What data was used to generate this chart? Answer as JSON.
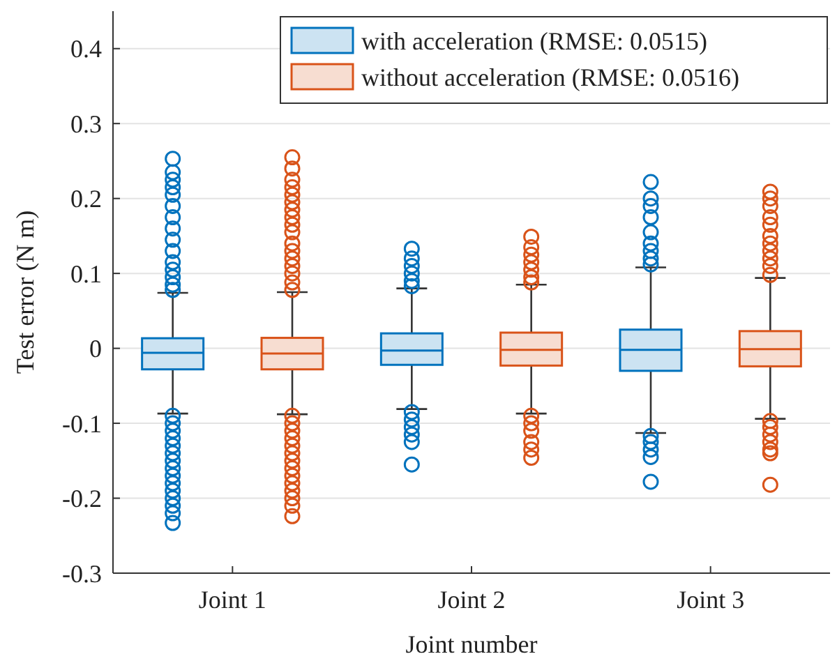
{
  "chart_data": {
    "type": "box",
    "xlabel": "Joint number",
    "ylabel": "Test error (N m)",
    "categories": [
      "Joint 1",
      "Joint 2",
      "Joint 3"
    ],
    "ylim": [
      -0.3,
      0.45
    ],
    "yticks": [
      -0.3,
      -0.2,
      -0.1,
      0,
      0.1,
      0.2,
      0.3,
      0.4
    ],
    "grid": "y",
    "legend": "top right",
    "marker": "circle",
    "series": [
      {
        "name": "with acceleration (RMSE: 0.0515)",
        "color": "#0072bd",
        "boxes": [
          {
            "low": -0.087,
            "q1": -0.028,
            "median": -0.006,
            "q3": 0.0135,
            "high": 0.074,
            "outliers": [
              0.078,
              0.085,
              0.095,
              0.105,
              0.115,
              0.13,
              0.145,
              0.16,
              0.175,
              0.19,
              0.205,
              0.215,
              0.225,
              0.235,
              0.253,
              -0.09,
              -0.1,
              -0.11,
              -0.12,
              -0.13,
              -0.14,
              -0.15,
              -0.16,
              -0.17,
              -0.18,
              -0.19,
              -0.2,
              -0.21,
              -0.22,
              -0.233
            ]
          },
          {
            "low": -0.081,
            "q1": -0.022,
            "median": -0.003,
            "q3": 0.02,
            "high": 0.08,
            "outliers": [
              0.083,
              0.09,
              0.1,
              0.11,
              0.12,
              0.133,
              -0.085,
              -0.095,
              -0.105,
              -0.115,
              -0.125,
              -0.155
            ]
          },
          {
            "low": -0.113,
            "q1": -0.03,
            "median": -0.002,
            "q3": 0.025,
            "high": 0.108,
            "outliers": [
              0.112,
              0.12,
              0.13,
              0.14,
              0.155,
              0.175,
              0.19,
              0.2,
              0.222,
              -0.117,
              -0.125,
              -0.135,
              -0.145,
              -0.178
            ]
          }
        ]
      },
      {
        "name": "without acceleration (RMSE: 0.0516)",
        "color": "#d95319",
        "boxes": [
          {
            "low": -0.088,
            "q1": -0.028,
            "median": -0.007,
            "q3": 0.014,
            "high": 0.075,
            "outliers": [
              0.078,
              0.088,
              0.1,
              0.11,
              0.12,
              0.13,
              0.14,
              0.155,
              0.165,
              0.175,
              0.185,
              0.195,
              0.205,
              0.215,
              0.225,
              0.24,
              0.255,
              -0.09,
              -0.1,
              -0.11,
              -0.12,
              -0.13,
              -0.14,
              -0.15,
              -0.16,
              -0.17,
              -0.18,
              -0.19,
              -0.2,
              -0.21,
              -0.224
            ]
          },
          {
            "low": -0.087,
            "q1": -0.023,
            "median": -0.002,
            "q3": 0.021,
            "high": 0.085,
            "outliers": [
              0.088,
              0.095,
              0.105,
              0.115,
              0.125,
              0.135,
              0.149,
              -0.09,
              -0.1,
              -0.11,
              -0.125,
              -0.135,
              -0.146
            ]
          },
          {
            "low": -0.094,
            "q1": -0.024,
            "median": -0.001,
            "q3": 0.023,
            "high": 0.094,
            "outliers": [
              0.098,
              0.11,
              0.12,
              0.13,
              0.14,
              0.15,
              0.165,
              0.175,
              0.19,
              0.2,
              0.209,
              -0.097,
              -0.105,
              -0.115,
              -0.125,
              -0.135,
              -0.14,
              -0.182
            ]
          }
        ]
      }
    ]
  }
}
